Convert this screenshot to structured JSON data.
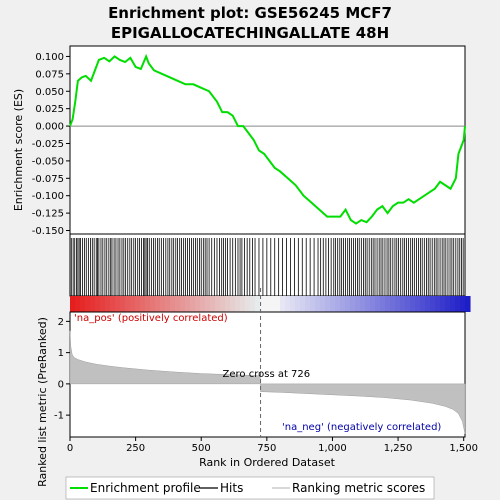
{
  "chart_data": {
    "type": "line",
    "title_line1": "Enrichment plot: GSE56245 MCF7",
    "title_line2": "EPIGALLOCATECHINGALLATE 48H",
    "es_panel": {
      "ylabel": "Enrichment score (ES)",
      "ylim": [
        -0.155,
        0.115
      ],
      "yticks": [
        0.1,
        0.075,
        0.05,
        0.025,
        0.0,
        -0.025,
        -0.05,
        -0.075,
        -0.1,
        -0.125,
        -0.15
      ],
      "ytick_labels": [
        "0.100",
        "0.075",
        "0.050",
        "0.025",
        "0.000",
        "-0.025",
        "-0.050",
        "-0.075",
        "-0.100",
        "-0.125",
        "-0.150"
      ],
      "series": [
        {
          "name": "Enrichment profile",
          "color": "#00dd00",
          "x": [
            0,
            10,
            20,
            30,
            45,
            60,
            80,
            95,
            110,
            130,
            150,
            170,
            190,
            210,
            230,
            250,
            270,
            290,
            300,
            320,
            350,
            380,
            410,
            440,
            470,
            500,
            530,
            560,
            580,
            600,
            620,
            640,
            660,
            680,
            700,
            720,
            740,
            760,
            780,
            800,
            830,
            860,
            890,
            920,
            950,
            980,
            1010,
            1030,
            1050,
            1070,
            1090,
            1110,
            1130,
            1150,
            1170,
            1190,
            1210,
            1230,
            1250,
            1270,
            1290,
            1310,
            1330,
            1350,
            1370,
            1390,
            1410,
            1430,
            1450,
            1470,
            1480,
            1490,
            1500,
            1505
          ],
          "y": [
            0.0,
            0.01,
            0.035,
            0.065,
            0.07,
            0.072,
            0.065,
            0.08,
            0.095,
            0.098,
            0.093,
            0.1,
            0.095,
            0.092,
            0.098,
            0.085,
            0.082,
            0.1,
            0.09,
            0.08,
            0.075,
            0.07,
            0.065,
            0.06,
            0.06,
            0.055,
            0.05,
            0.035,
            0.02,
            0.02,
            0.015,
            0.0,
            0.0,
            -0.01,
            -0.02,
            -0.035,
            -0.04,
            -0.05,
            -0.06,
            -0.065,
            -0.075,
            -0.085,
            -0.1,
            -0.11,
            -0.12,
            -0.13,
            -0.13,
            -0.13,
            -0.12,
            -0.135,
            -0.14,
            -0.135,
            -0.138,
            -0.13,
            -0.12,
            -0.115,
            -0.125,
            -0.115,
            -0.11,
            -0.11,
            -0.105,
            -0.11,
            -0.105,
            -0.1,
            -0.095,
            -0.09,
            -0.08,
            -0.085,
            -0.09,
            -0.075,
            -0.04,
            -0.03,
            -0.02,
            0.0
          ]
        }
      ]
    },
    "hits": {
      "name": "Hits",
      "x": [
        5,
        12,
        18,
        25,
        30,
        35,
        40,
        48,
        55,
        62,
        70,
        78,
        85,
        92,
        100,
        105,
        110,
        118,
        125,
        133,
        140,
        148,
        155,
        160,
        168,
        175,
        183,
        190,
        198,
        205,
        212,
        220,
        228,
        235,
        243,
        250,
        258,
        265,
        272,
        280,
        285,
        290,
        295,
        302,
        310,
        318,
        325,
        333,
        340,
        348,
        356,
        365,
        373,
        380,
        388,
        395,
        403,
        410,
        418,
        425,
        433,
        440,
        448,
        455,
        463,
        470,
        478,
        485,
        493,
        500,
        508,
        515,
        522,
        530,
        540,
        550,
        560,
        570,
        578,
        585,
        593,
        600,
        610,
        620,
        630,
        640,
        648,
        655,
        665,
        675,
        685,
        695,
        705,
        720,
        735,
        750,
        765,
        780,
        795,
        810,
        825,
        840,
        855,
        870,
        885,
        900,
        915,
        930,
        945,
        955,
        965,
        975,
        985,
        995,
        1005,
        1012,
        1020,
        1028,
        1035,
        1042,
        1050,
        1058,
        1065,
        1072,
        1080,
        1088,
        1095,
        1102,
        1110,
        1118,
        1125,
        1132,
        1140,
        1148,
        1155,
        1162,
        1170,
        1178,
        1185,
        1192,
        1200,
        1208,
        1215,
        1222,
        1230,
        1238,
        1245,
        1252,
        1260,
        1268,
        1275,
        1282,
        1290,
        1298,
        1305,
        1312,
        1320,
        1328,
        1335,
        1342,
        1350,
        1358,
        1365,
        1372,
        1380,
        1388,
        1395,
        1402,
        1410,
        1418,
        1425,
        1432,
        1440,
        1448,
        1455,
        1462,
        1470,
        1478,
        1485,
        1492,
        1498
      ]
    },
    "rank_panel": {
      "ylabel": "Ranked list metric (PreRanked)",
      "ylim": [
        -1.7,
        2.3
      ],
      "yticks": [
        2,
        1,
        0,
        -1
      ],
      "ytick_labels": [
        "2",
        "1",
        "0",
        "-1"
      ],
      "series": [
        {
          "name": "Ranking metric scores",
          "color": "#c0c0c0",
          "x": [
            0,
            3,
            8,
            15,
            30,
            60,
            100,
            150,
            200,
            300,
            400,
            500,
            600,
            700,
            725,
            726,
            800,
            900,
            1000,
            1100,
            1200,
            1300,
            1380,
            1430,
            1460,
            1480,
            1495,
            1505
          ],
          "y": [
            1.7,
            1.2,
            0.95,
            0.85,
            0.78,
            0.7,
            0.63,
            0.57,
            0.52,
            0.44,
            0.38,
            0.33,
            0.3,
            0.27,
            0.26,
            -0.25,
            -0.27,
            -0.31,
            -0.35,
            -0.39,
            -0.44,
            -0.52,
            -0.62,
            -0.72,
            -0.82,
            -0.95,
            -1.2,
            -1.6
          ]
        }
      ],
      "zero_cross_label": "Zero cross at 726",
      "zero_cross_x": 726,
      "pos_label": "'na_pos' (positively correlated)",
      "neg_label": "'na_neg' (negatively correlated)"
    },
    "xaxis": {
      "label": "Rank in Ordered Dataset",
      "xlim": [
        0,
        1505
      ],
      "ticks": [
        0,
        250,
        500,
        750,
        1000,
        1250,
        1500
      ],
      "tick_labels": [
        "0",
        "250",
        "500",
        "750",
        "1,000",
        "1,250",
        "1,500"
      ]
    },
    "legend": {
      "placement": "bottom",
      "entries": [
        {
          "label": "Enrichment profile",
          "color": "#00dd00"
        },
        {
          "label": "Hits",
          "color": "#000000"
        },
        {
          "label": "Ranking metric scores",
          "color": "#c0c0c0"
        }
      ]
    },
    "colors": {
      "positive": "#ee2222",
      "negative": "#2222cc",
      "pos_text": "#cc0000",
      "neg_text": "#0000aa"
    }
  }
}
